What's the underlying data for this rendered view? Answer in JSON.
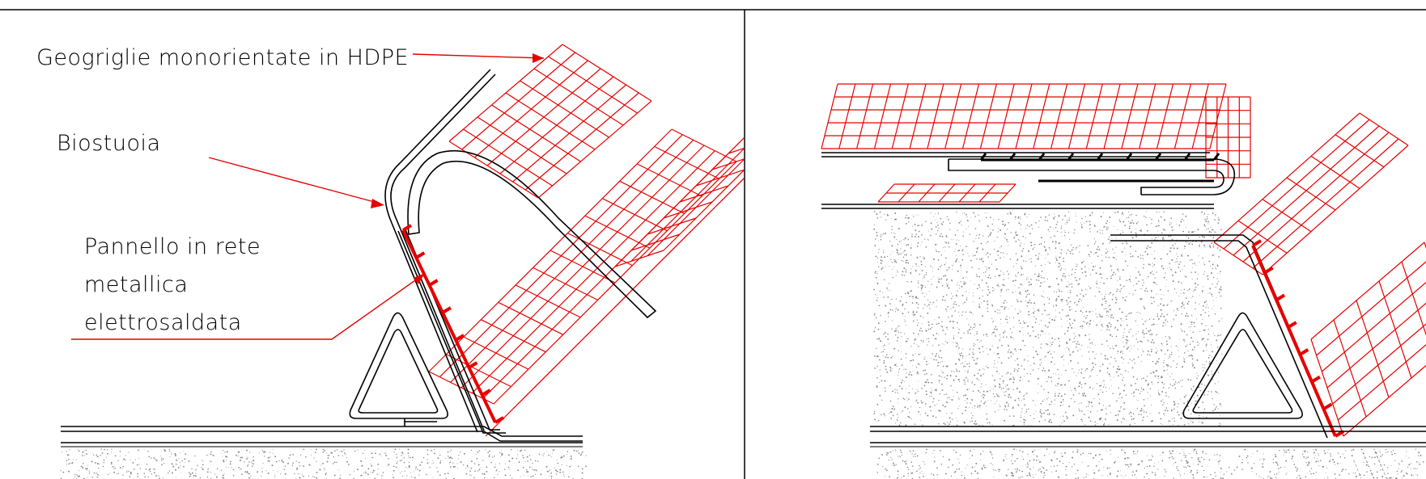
{
  "labels": {
    "geogriglie": "Geogriglie monorientate in HDPE",
    "biostuoia": "Biostuoia",
    "pannello_line1": "Pannello in rete",
    "pannello_line2": "metallica",
    "pannello_line3": "elettrosaldata"
  },
  "colors": {
    "line": "#000000",
    "geogrid": "#e60000",
    "soil": "#888888"
  },
  "icons": {
    "left_panel": "reinforced-soil-wall-section",
    "right_panel": "reinforced-soil-wall-wrap-detail"
  }
}
